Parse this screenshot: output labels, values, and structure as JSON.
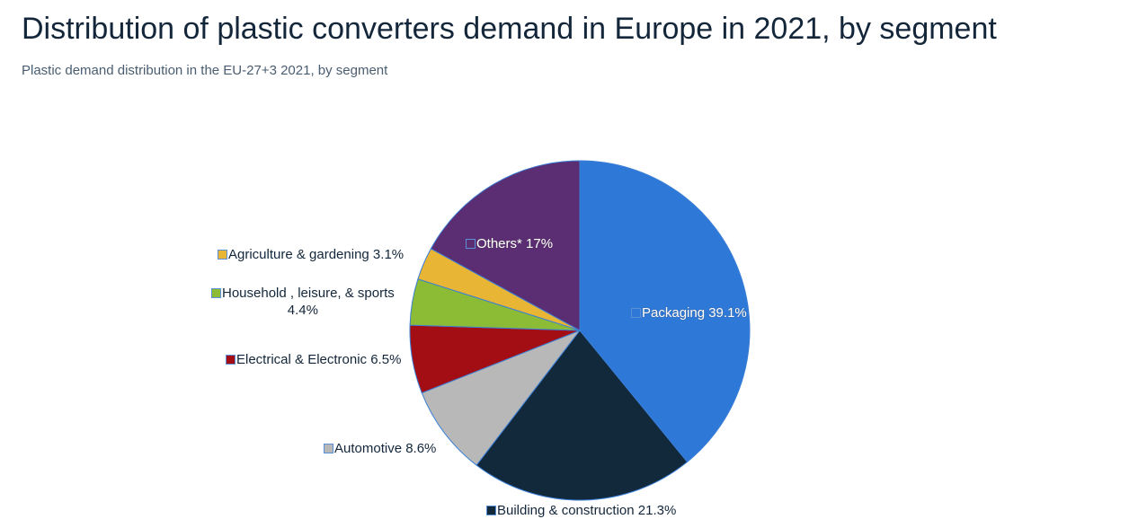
{
  "chart_data": {
    "type": "pie",
    "title": "Distribution of plastic converters demand in Europe in 2021, by segment",
    "subtitle": "Plastic demand distribution in the EU-27+3 2021, by segment",
    "unit": "%",
    "start": "top, clockwise",
    "categories": [
      "Packaging",
      "Building & construction",
      "Automotive",
      "Electrical & Electronic",
      "Household , leisure, & sports",
      "Agriculture & gardening",
      "Others*"
    ],
    "values": [
      39.1,
      21.3,
      8.6,
      6.5,
      4.4,
      3.1,
      17
    ],
    "colors": [
      "#2e78d8",
      "#12283b",
      "#b8b8b8",
      "#a30e15",
      "#8cbb35",
      "#e9b535",
      "#5b2d72"
    ]
  }
}
